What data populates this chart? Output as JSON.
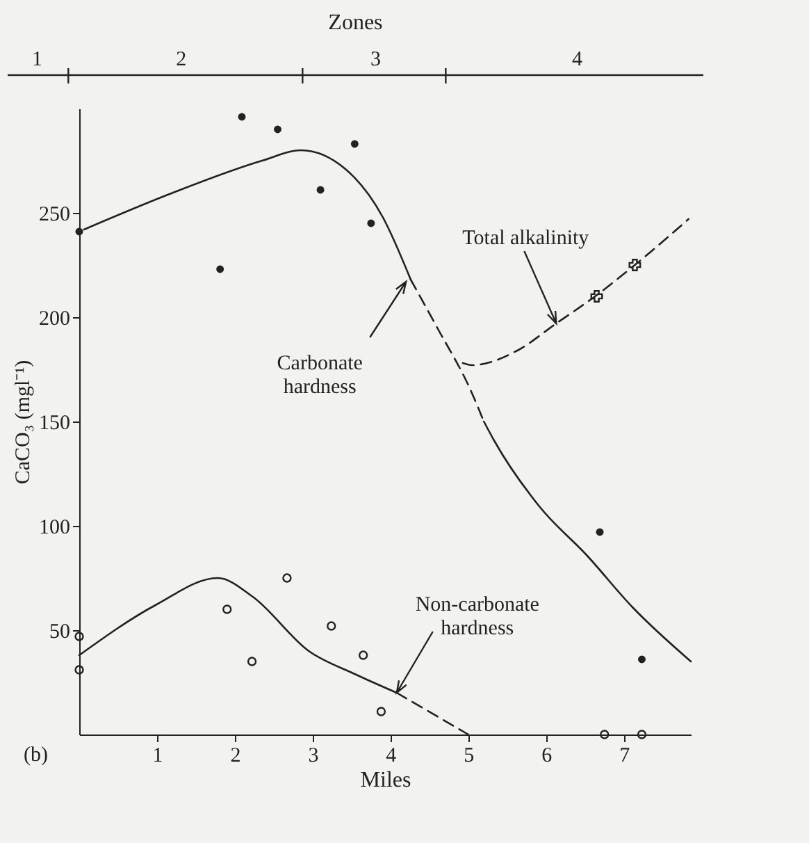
{
  "chart_data": {
    "type": "line",
    "xlabel": "Miles",
    "ylabel": "CaCO₃ (mgl⁻¹)",
    "xlim": [
      0,
      7.86
    ],
    "ylim": [
      0,
      300
    ],
    "xticks": [
      1,
      2,
      3,
      4,
      5,
      6,
      7
    ],
    "yticks": [
      50,
      100,
      150,
      200,
      250
    ],
    "grid": false,
    "series": [
      {
        "type": "line",
        "color": "#222222",
        "line_style": "solid",
        "x": [
          0.06,
          1.16,
          2.35,
          2.85,
          3.42,
          3.9,
          4.26
        ],
        "values": [
          242,
          259,
          275,
          280,
          271,
          248,
          218
        ]
      },
      {
        "type": "line",
        "color": "#222222",
        "line_style": "dashed",
        "x": [
          4.26,
          4.6,
          5.03,
          5.2
        ],
        "values": [
          218,
          195,
          165,
          150
        ]
      },
      {
        "type": "line",
        "color": "#222222",
        "line_style": "solid",
        "x": [
          5.2,
          5.33,
          5.92,
          6.52,
          7.11,
          7.86
        ],
        "values": [
          150,
          141,
          109,
          86,
          61,
          35
        ]
      },
      {
        "type": "line",
        "color": "#222222",
        "line_style": "dashed",
        "x": [
          4.93,
          5.05,
          5.63,
          6.13,
          6.63,
          7.14,
          7.83
        ],
        "values": [
          178,
          177,
          184,
          197,
          210,
          225,
          247
        ]
      },
      {
        "type": "line",
        "color": "#222222",
        "line_style": "solid",
        "x": [
          0,
          0.98,
          1.78,
          2.23,
          2.95,
          3.54,
          4.08
        ],
        "values": [
          38,
          62,
          75,
          66,
          40,
          29,
          20
        ]
      },
      {
        "type": "line",
        "color": "#222222",
        "line_style": "dashed",
        "x": [
          4.08,
          5.0
        ],
        "values": [
          20,
          0
        ]
      },
      {
        "type": "scatter",
        "color": "#222222",
        "marker": "circle",
        "x": [
          0,
          1.81,
          2.09,
          2.55,
          3.1,
          3.54,
          3.75,
          6.69,
          7.23
        ],
        "values": [
          241,
          223,
          296,
          290,
          261,
          283,
          245,
          97,
          36
        ]
      },
      {
        "type": "scatter",
        "color": "#222222",
        "marker": "circle-open",
        "x": [
          0,
          0,
          1.9,
          2.22,
          2.67,
          3.24,
          3.65,
          3.88,
          6.75,
          7.23
        ],
        "values": [
          47,
          31,
          60,
          35,
          75,
          52,
          38,
          11,
          0,
          0
        ]
      },
      {
        "type": "scatter",
        "color": "#222222",
        "marker": "cross",
        "x": [
          6.65,
          7.14
        ],
        "values": [
          210,
          225
        ]
      }
    ],
    "annotations": [
      {
        "text": "Carbonate hardness",
        "x": 4.2,
        "y": 217
      },
      {
        "text": "Total alkalinity",
        "x": 6.13,
        "y": 197
      },
      {
        "text": "Non-carbonate hardness",
        "x": 4.08,
        "y": 20
      },
      "(b)",
      "Zones",
      "1",
      "2",
      "3",
      "4"
    ]
  }
}
